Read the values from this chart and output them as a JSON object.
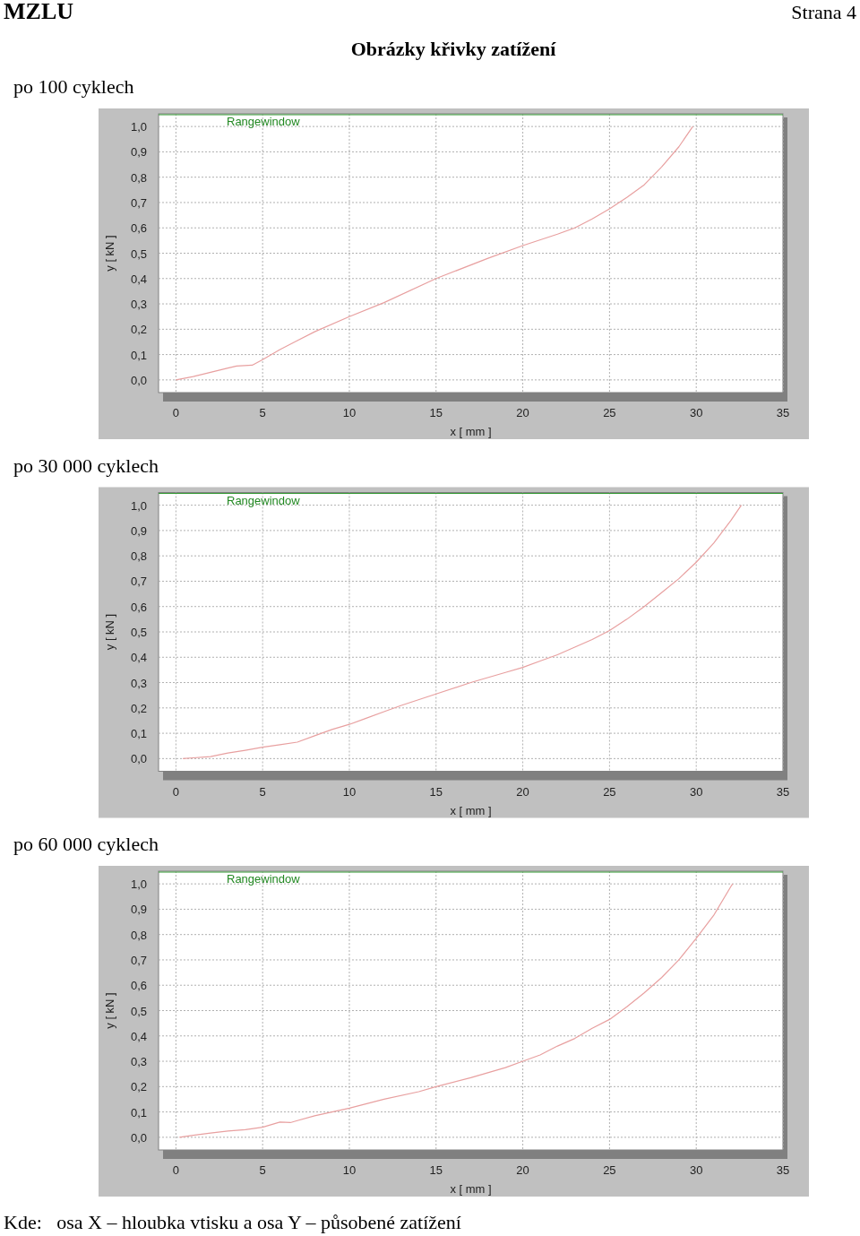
{
  "chart_data": [
    {
      "type": "line",
      "title": "po 100 cyklech",
      "xlabel": "x [ mm ]",
      "ylabel": "y [ kN ]",
      "annotations": [
        "Rangewindow",
        "MZLU",
        "Strana 4",
        "Obrázky křivky zatížení"
      ],
      "xlim": [
        -1,
        35
      ],
      "ylim": [
        -0.05,
        1.05
      ],
      "xticks": [
        0,
        5,
        10,
        15,
        20,
        25,
        30,
        35
      ],
      "yticks": [
        {
          "value": 0,
          "label": "0,0"
        },
        {
          "value": 0.1,
          "label": "0,1"
        },
        {
          "value": 0.2,
          "label": "0,2"
        },
        {
          "value": 0.3,
          "label": "0,3"
        },
        {
          "value": 0.4,
          "label": "0,4"
        },
        {
          "value": 0.5,
          "label": "0,5"
        },
        {
          "value": 0.6,
          "label": "0,6"
        },
        {
          "value": 0.7,
          "label": "0,7"
        },
        {
          "value": 0.8,
          "label": "0,8"
        },
        {
          "value": 0.9,
          "label": "0,9"
        },
        {
          "value": 1,
          "label": "1,0"
        }
      ],
      "grid": true,
      "line_style": "solid",
      "series": [
        {
          "color": "#e8a0a0",
          "x": [
            0,
            1,
            2,
            3,
            3.5,
            4.4,
            5,
            6,
            7,
            8,
            10,
            12,
            15,
            18,
            20,
            22,
            23,
            24,
            25,
            26,
            27,
            28,
            29,
            29.5,
            29.8
          ],
          "values": [
            0,
            0.013,
            0.03,
            0.047,
            0.055,
            0.058,
            0.08,
            0.12,
            0.155,
            0.19,
            0.25,
            0.305,
            0.4,
            0.48,
            0.53,
            0.575,
            0.6,
            0.635,
            0.675,
            0.72,
            0.77,
            0.84,
            0.92,
            0.97,
            1.0
          ]
        }
      ]
    },
    {
      "type": "line",
      "title": "po 30 000 cyklech",
      "xlabel": "x [ mm ]",
      "ylabel": "y [ kN ]",
      "annotations": [
        "Rangewindow"
      ],
      "xlim": [
        -1,
        35
      ],
      "ylim": [
        -0.05,
        1.05
      ],
      "xticks": [
        0,
        5,
        10,
        15,
        20,
        25,
        30,
        35
      ],
      "yticks": [
        {
          "value": 0,
          "label": "0,0"
        },
        {
          "value": 0.1,
          "label": "0,1"
        },
        {
          "value": 0.2,
          "label": "0,2"
        },
        {
          "value": 0.3,
          "label": "0,3"
        },
        {
          "value": 0.4,
          "label": "0,4"
        },
        {
          "value": 0.5,
          "label": "0,5"
        },
        {
          "value": 0.6,
          "label": "0,6"
        },
        {
          "value": 0.7,
          "label": "0,7"
        },
        {
          "value": 0.8,
          "label": "0,8"
        },
        {
          "value": 0.9,
          "label": "0,9"
        },
        {
          "value": 1,
          "label": "1,0"
        }
      ],
      "grid": true,
      "line_style": "solid",
      "series": [
        {
          "color": "#e8a0a0",
          "x": [
            0.4,
            1,
            2,
            3,
            4,
            5,
            6,
            7,
            8,
            9,
            10,
            11,
            12,
            13,
            15,
            17,
            19,
            20,
            21,
            22,
            23,
            24,
            25,
            26,
            27,
            28,
            29,
            30,
            31,
            32,
            32.6
          ],
          "values": [
            0,
            0.003,
            0.008,
            0.022,
            0.033,
            0.045,
            0.055,
            0.065,
            0.09,
            0.115,
            0.135,
            0.16,
            0.185,
            0.21,
            0.255,
            0.3,
            0.34,
            0.36,
            0.385,
            0.41,
            0.44,
            0.47,
            0.505,
            0.55,
            0.6,
            0.655,
            0.71,
            0.775,
            0.85,
            0.94,
            1.0
          ]
        }
      ]
    },
    {
      "type": "line",
      "title": "po 60 000 cyklech",
      "xlabel": "x [ mm ]",
      "ylabel": "y [ kN ]",
      "annotations": [
        "Rangewindow",
        "Kde:   osa X – hloubka vtisku a osa Y – působené zatížení"
      ],
      "xlim": [
        -1,
        35
      ],
      "ylim": [
        -0.05,
        1.05
      ],
      "xticks": [
        0,
        5,
        10,
        15,
        20,
        25,
        30,
        35
      ],
      "yticks": [
        {
          "value": 0,
          "label": "0,0"
        },
        {
          "value": 0.1,
          "label": "0,1"
        },
        {
          "value": 0.2,
          "label": "0,2"
        },
        {
          "value": 0.3,
          "label": "0,3"
        },
        {
          "value": 0.4,
          "label": "0,4"
        },
        {
          "value": 0.5,
          "label": "0,5"
        },
        {
          "value": 0.6,
          "label": "0,6"
        },
        {
          "value": 0.7,
          "label": "0,7"
        },
        {
          "value": 0.8,
          "label": "0,8"
        },
        {
          "value": 0.9,
          "label": "0,9"
        },
        {
          "value": 1,
          "label": "1,0"
        }
      ],
      "grid": true,
      "line_style": "solid",
      "series": [
        {
          "color": "#e8a0a0",
          "x": [
            0.2,
            1,
            2,
            3,
            4,
            5,
            6,
            6.6,
            7,
            8,
            9,
            10,
            12,
            14,
            15,
            17,
            19,
            20,
            21,
            22,
            23,
            24,
            25,
            26,
            27,
            28,
            29,
            30,
            31,
            32,
            32.1
          ],
          "values": [
            0,
            0.008,
            0.017,
            0.025,
            0.03,
            0.04,
            0.06,
            0.058,
            0.066,
            0.085,
            0.1,
            0.115,
            0.15,
            0.18,
            0.2,
            0.235,
            0.275,
            0.3,
            0.325,
            0.36,
            0.39,
            0.43,
            0.465,
            0.515,
            0.57,
            0.63,
            0.7,
            0.785,
            0.875,
            0.99,
            1.0
          ]
        }
      ]
    }
  ]
}
